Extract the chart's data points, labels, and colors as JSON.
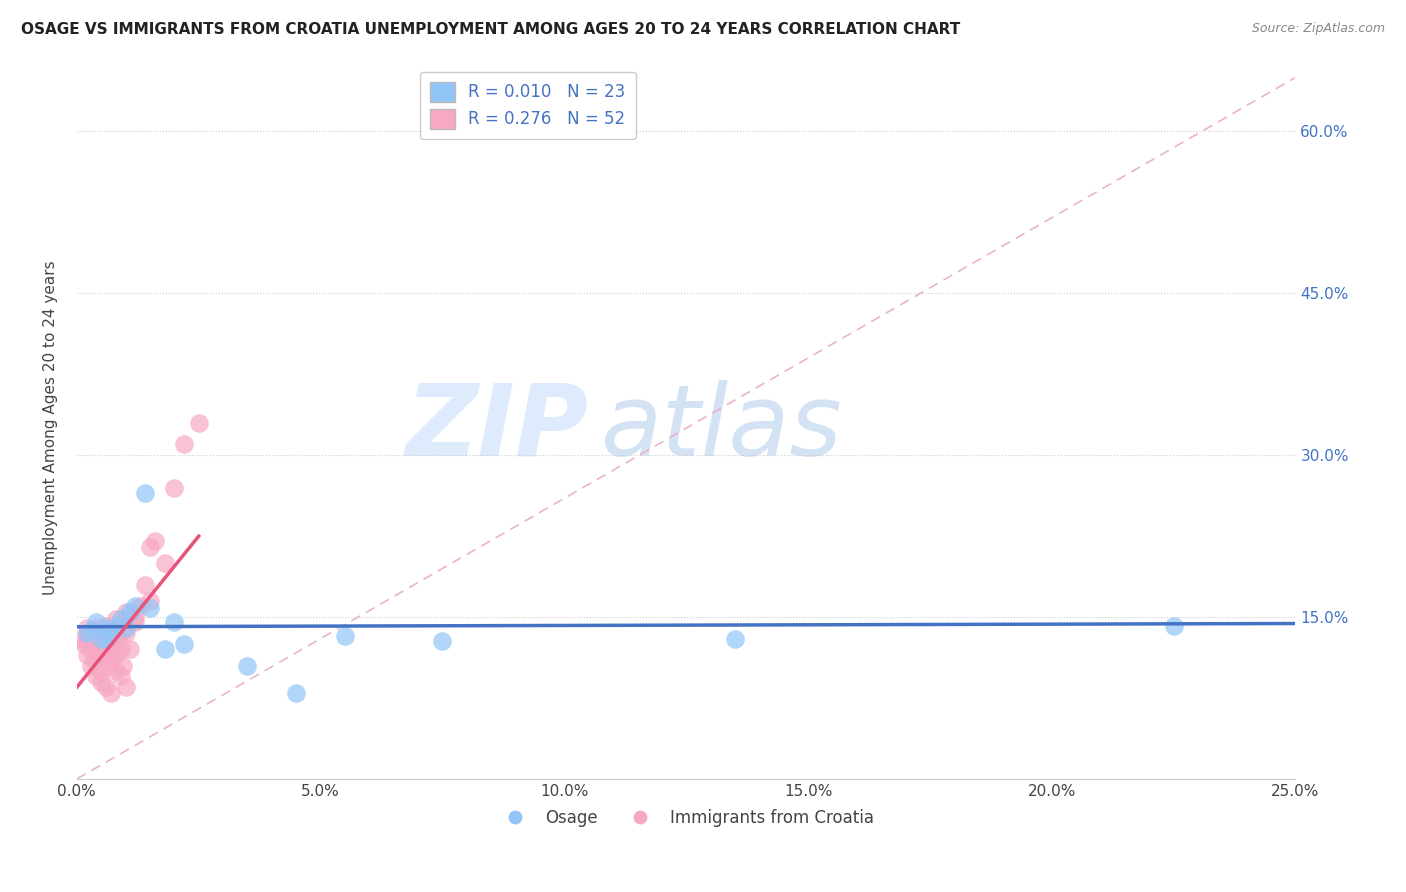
{
  "title": "OSAGE VS IMMIGRANTS FROM CROATIA UNEMPLOYMENT AMONG AGES 20 TO 24 YEARS CORRELATION CHART",
  "source": "Source: ZipAtlas.com",
  "ylabel": "Unemployment Among Ages 20 to 24 years",
  "x_tick_labels": [
    "0.0%",
    "5.0%",
    "10.0%",
    "15.0%",
    "20.0%",
    "25.0%"
  ],
  "x_tick_vals": [
    0,
    5,
    10,
    15,
    20,
    25
  ],
  "y_tick_labels": [
    "15.0%",
    "30.0%",
    "45.0%",
    "60.0%"
  ],
  "y_tick_vals": [
    15,
    30,
    45,
    60
  ],
  "xlim": [
    0,
    25
  ],
  "ylim": [
    0,
    65
  ],
  "legend_labels": [
    "Osage",
    "Immigrants from Croatia"
  ],
  "R_osage": "0.010",
  "N_osage": "23",
  "R_croatia": "0.276",
  "N_croatia": "52",
  "osage_color": "#92C5F7",
  "croatia_color": "#F7A8C4",
  "osage_line_color": "#4472C4",
  "croatia_line_color": "#E8537A",
  "ref_line_color": "#E8B4C8",
  "watermark_zip": "ZIP",
  "watermark_atlas": "atlas",
  "background_color": "#FFFFFF",
  "osage_scatter_x": [
    0.2,
    0.4,
    0.5,
    0.6,
    0.7,
    0.8,
    0.9,
    1.0,
    1.1,
    1.2,
    1.4,
    1.5,
    2.0,
    2.2,
    5.5,
    7.5,
    13.5,
    22.5,
    0.3,
    0.6,
    1.8,
    3.5,
    4.5
  ],
  "osage_scatter_y": [
    13.5,
    14.5,
    13.0,
    14.0,
    13.5,
    14.2,
    14.8,
    14.0,
    15.5,
    16.0,
    26.5,
    15.8,
    14.5,
    12.5,
    13.2,
    12.8,
    13.0,
    14.2,
    13.8,
    13.0,
    12.0,
    10.5,
    8.0
  ],
  "croatia_scatter_x": [
    0.1,
    0.15,
    0.2,
    0.2,
    0.25,
    0.3,
    0.3,
    0.35,
    0.4,
    0.4,
    0.45,
    0.5,
    0.5,
    0.55,
    0.6,
    0.6,
    0.65,
    0.7,
    0.7,
    0.75,
    0.8,
    0.8,
    0.85,
    0.9,
    0.9,
    0.95,
    1.0,
    1.0,
    1.1,
    1.2,
    1.3,
    1.4,
    1.5,
    1.6,
    1.8,
    2.0,
    2.2,
    2.5,
    0.3,
    0.4,
    0.5,
    0.6,
    0.7,
    0.8,
    1.0,
    1.2,
    1.5,
    0.2,
    0.35,
    0.55,
    0.75,
    0.95
  ],
  "croatia_scatter_y": [
    13.0,
    12.5,
    14.0,
    11.5,
    13.5,
    12.0,
    10.5,
    11.0,
    12.5,
    9.5,
    13.0,
    10.0,
    9.0,
    11.5,
    12.0,
    8.5,
    10.5,
    11.0,
    8.0,
    12.5,
    11.5,
    10.0,
    13.0,
    12.0,
    9.5,
    10.5,
    13.5,
    8.5,
    12.0,
    14.5,
    16.0,
    18.0,
    21.5,
    22.0,
    20.0,
    27.0,
    31.0,
    33.0,
    13.5,
    14.0,
    13.8,
    14.2,
    13.5,
    14.8,
    15.5,
    15.0,
    16.5,
    12.8,
    13.2,
    13.0,
    12.5,
    13.8
  ],
  "osage_trend_x": [
    0,
    25
  ],
  "osage_trend_y": [
    14.1,
    14.4
  ],
  "croatia_trend_x": [
    0,
    2.5
  ],
  "croatia_trend_y": [
    8.5,
    22.5
  ]
}
